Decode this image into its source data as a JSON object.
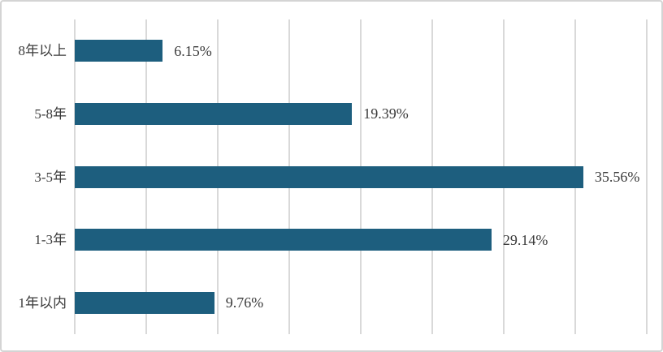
{
  "chart_data": {
    "type": "bar",
    "orientation": "horizontal",
    "title": "",
    "xlabel": "",
    "ylabel": "",
    "categories": [
      "8年以上",
      "5-8年",
      "3-5年",
      "1-3年",
      "1年以内"
    ],
    "values": [
      6.15,
      19.39,
      35.56,
      29.14,
      9.76
    ],
    "value_labels": [
      "6.15%",
      "19.39%",
      "35.56%",
      "29.14%",
      "9.76%"
    ],
    "xlim": [
      0,
      40
    ],
    "gridline_step": 5,
    "grid": "vertical-only",
    "legend": "none",
    "axis_tick_labels_visible": false,
    "colors": {
      "bar": "#1d5e7e",
      "gridline": "#d9d9d9",
      "text": "#3a3a3a",
      "border": "#d4d4d4",
      "background": "#ffffff"
    }
  }
}
